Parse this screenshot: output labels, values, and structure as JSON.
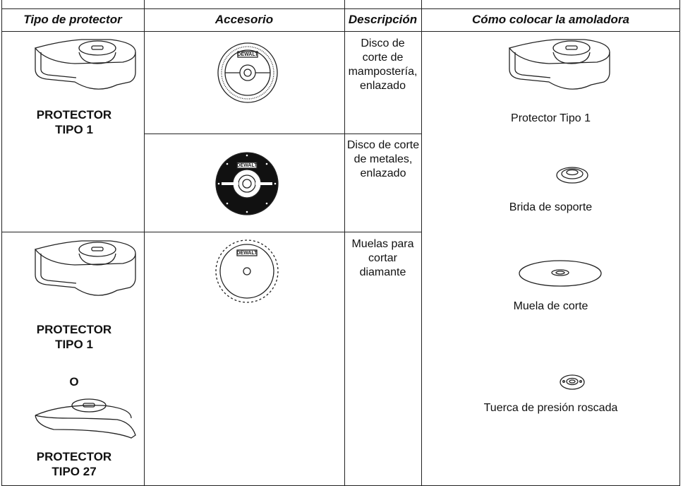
{
  "table": {
    "headers": [
      "Tipo de protector",
      "Accesorio",
      "Descripción",
      "Cómo colocar la amoladora"
    ],
    "guards": [
      {
        "labels": [
          "PROTECTOR TIPO 1"
        ]
      },
      {
        "labels": [
          "PROTECTOR TIPO 1",
          "O",
          "PROTECTOR TIPO 27"
        ]
      }
    ],
    "accessories": [
      {
        "brand": "DEWALT",
        "description": "Disco de corte de mampostería, enlazado"
      },
      {
        "brand": "DEWALT",
        "description": "Disco de corte de metales, enlazado"
      },
      {
        "brand": "DEWALT",
        "description": "Muelas para cortar diamante"
      }
    ],
    "assembly": [
      "Protector Tipo 1",
      "Brida de soporte",
      "Muela de corte",
      "Tuerca de presión roscada"
    ]
  }
}
